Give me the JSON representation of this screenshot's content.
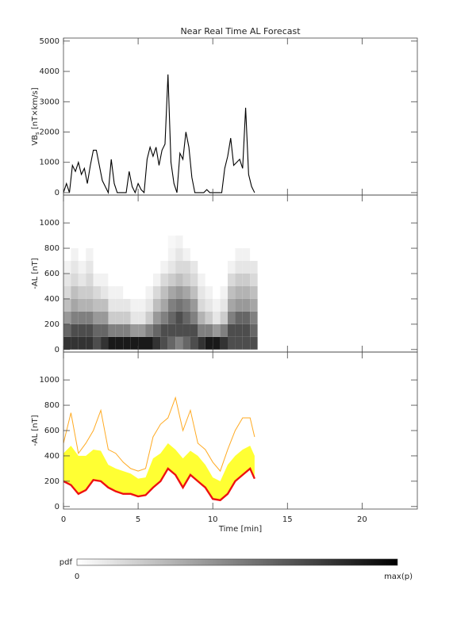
{
  "chart_data": [
    {
      "type": "line",
      "title": "Near Real Time AL Forecast",
      "ylabel": {
        "main": "VB",
        "sub": "s",
        "rest": " [nT×km/s]"
      },
      "xlim": [
        0,
        23.7
      ],
      "xticks": [
        0,
        5,
        10,
        15,
        20
      ],
      "ylim": [
        -80,
        5100
      ],
      "yticks": [
        0,
        1000,
        2000,
        3000,
        4000,
        5000
      ],
      "color": "#000000",
      "x": [
        0,
        0.2,
        0.4,
        0.6,
        0.8,
        1,
        1.2,
        1.4,
        1.6,
        1.8,
        2,
        2.2,
        2.4,
        2.6,
        2.8,
        3,
        3.2,
        3.4,
        3.6,
        3.8,
        4,
        4.2,
        4.4,
        4.6,
        4.8,
        5,
        5.2,
        5.4,
        5.6,
        5.8,
        6,
        6.2,
        6.4,
        6.6,
        6.8,
        7,
        7.2,
        7.4,
        7.6,
        7.8,
        8,
        8.2,
        8.4,
        8.6,
        8.8,
        9,
        9.2,
        9.4,
        9.6,
        9.8,
        10,
        10.2,
        10.4,
        10.6,
        10.8,
        11,
        11.2,
        11.4,
        11.6,
        11.8,
        12,
        12.2,
        12.4,
        12.6,
        12.8
      ],
      "values": [
        0,
        300,
        0,
        900,
        700,
        1000,
        600,
        800,
        300,
        900,
        1400,
        1400,
        900,
        400,
        200,
        0,
        1100,
        300,
        0,
        0,
        0,
        0,
        700,
        200,
        0,
        300,
        100,
        0,
        1100,
        1500,
        1200,
        1500,
        900,
        1400,
        1600,
        3900,
        1000,
        300,
        0,
        1300,
        1100,
        2000,
        1500,
        500,
        0,
        0,
        0,
        0,
        100,
        0,
        0,
        0,
        0,
        0,
        800,
        1200,
        1800,
        900,
        1000,
        1100,
        800,
        2800,
        600,
        200,
        0
      ]
    },
    {
      "type": "heatmap",
      "ylabel": "-AL [nT]",
      "xlim": [
        0,
        23.7
      ],
      "xticks": [
        0,
        5,
        10,
        15,
        20
      ],
      "ylim": [
        -20,
        1220
      ],
      "yticks": [
        0,
        200,
        400,
        600,
        800,
        1000
      ],
      "xbins": [
        0,
        0.5,
        1,
        1.5,
        2,
        2.5,
        3,
        3.5,
        4,
        4.5,
        5,
        5.5,
        6,
        6.5,
        7,
        7.5,
        8,
        8.5,
        9,
        9.5,
        10,
        10.5,
        11,
        11.5,
        12,
        12.5,
        13
      ],
      "ybins": [
        0,
        100,
        200,
        300,
        400,
        500,
        600,
        700,
        800,
        900
      ],
      "values": [
        [
          0.8,
          0.8,
          0.8,
          0.8,
          0.7,
          0.8,
          0.9,
          0.9,
          0.9,
          0.9,
          0.9,
          0.9,
          0.8,
          0.7,
          0.6,
          0.5,
          0.6,
          0.7,
          0.8,
          0.9,
          0.9,
          0.8,
          0.7,
          0.7,
          0.7,
          0.7
        ],
        [
          0.6,
          0.7,
          0.7,
          0.7,
          0.6,
          0.6,
          0.5,
          0.5,
          0.5,
          0.4,
          0.4,
          0.5,
          0.6,
          0.7,
          0.7,
          0.7,
          0.7,
          0.7,
          0.5,
          0.5,
          0.4,
          0.5,
          0.7,
          0.7,
          0.7,
          0.6
        ],
        [
          0.4,
          0.5,
          0.5,
          0.5,
          0.4,
          0.4,
          0.2,
          0.2,
          0.2,
          0.1,
          0.1,
          0.2,
          0.4,
          0.5,
          0.6,
          0.7,
          0.6,
          0.5,
          0.3,
          0.2,
          0.1,
          0.2,
          0.5,
          0.6,
          0.6,
          0.5
        ],
        [
          0.25,
          0.35,
          0.3,
          0.3,
          0.25,
          0.25,
          0.1,
          0.1,
          0.1,
          0.05,
          0.05,
          0.1,
          0.25,
          0.35,
          0.5,
          0.55,
          0.5,
          0.4,
          0.15,
          0.1,
          0.05,
          0.1,
          0.35,
          0.4,
          0.4,
          0.35
        ],
        [
          0.15,
          0.25,
          0.2,
          0.2,
          0.15,
          0.1,
          0.05,
          0.05,
          0,
          0,
          0,
          0.05,
          0.15,
          0.25,
          0.35,
          0.4,
          0.35,
          0.25,
          0.1,
          0.05,
          0,
          0.05,
          0.25,
          0.3,
          0.3,
          0.25
        ],
        [
          0.1,
          0.15,
          0.1,
          0.15,
          0.05,
          0.05,
          0,
          0,
          0,
          0,
          0,
          0,
          0.05,
          0.15,
          0.2,
          0.25,
          0.2,
          0.15,
          0.05,
          0,
          0,
          0,
          0.15,
          0.2,
          0.2,
          0.15
        ],
        [
          0.05,
          0.1,
          0.05,
          0.1,
          0,
          0,
          0,
          0,
          0,
          0,
          0,
          0,
          0,
          0.05,
          0.1,
          0.15,
          0.15,
          0.1,
          0,
          0,
          0,
          0,
          0.05,
          0.1,
          0.1,
          0.1
        ],
        [
          0,
          0.05,
          0,
          0.05,
          0,
          0,
          0,
          0,
          0,
          0,
          0,
          0,
          0,
          0,
          0.05,
          0.1,
          0.05,
          0,
          0,
          0,
          0,
          0,
          0,
          0.05,
          0.05,
          0
        ],
        [
          0,
          0,
          0,
          0,
          0,
          0,
          0,
          0,
          0,
          0,
          0,
          0,
          0,
          0,
          0.03,
          0.05,
          0,
          0,
          0,
          0,
          0,
          0,
          0,
          0,
          0,
          0
        ]
      ],
      "colorbar": {
        "label": "pdf",
        "min_label": "0",
        "max_label": "max(p)"
      }
    },
    {
      "type": "band",
      "ylabel": "-AL [nT]",
      "xlabel": "Time [min]",
      "xlim": [
        0,
        23.7
      ],
      "xticks": [
        0,
        5,
        10,
        15,
        20
      ],
      "ylim": [
        -20,
        1220
      ],
      "yticks": [
        0,
        200,
        400,
        600,
        800,
        1000
      ],
      "x": [
        0,
        0.5,
        1,
        1.5,
        2,
        2.5,
        3,
        3.5,
        4,
        4.5,
        5,
        5.5,
        6,
        6.5,
        7,
        7.5,
        8,
        8.5,
        9,
        9.5,
        10,
        10.5,
        11,
        11.5,
        12,
        12.5,
        12.8
      ],
      "series": [
        {
          "color": "#ffaa22",
          "values": [
            500,
            740,
            420,
            500,
            600,
            760,
            450,
            420,
            350,
            300,
            280,
            300,
            550,
            650,
            700,
            860,
            600,
            760,
            500,
            450,
            350,
            280,
            450,
            600,
            700,
            700,
            550
          ]
        },
        {
          "color": "#ffff33",
          "fill": true,
          "values": [
            420,
            480,
            400,
            400,
            450,
            440,
            330,
            300,
            280,
            260,
            220,
            230,
            380,
            420,
            500,
            450,
            380,
            440,
            400,
            330,
            230,
            200,
            330,
            400,
            450,
            480,
            400
          ]
        },
        {
          "color": "#ee1111",
          "values": [
            200,
            170,
            100,
            130,
            210,
            200,
            150,
            120,
            100,
            100,
            80,
            90,
            150,
            200,
            300,
            250,
            150,
            250,
            200,
            150,
            60,
            50,
            100,
            200,
            250,
            300,
            220
          ]
        }
      ]
    }
  ]
}
